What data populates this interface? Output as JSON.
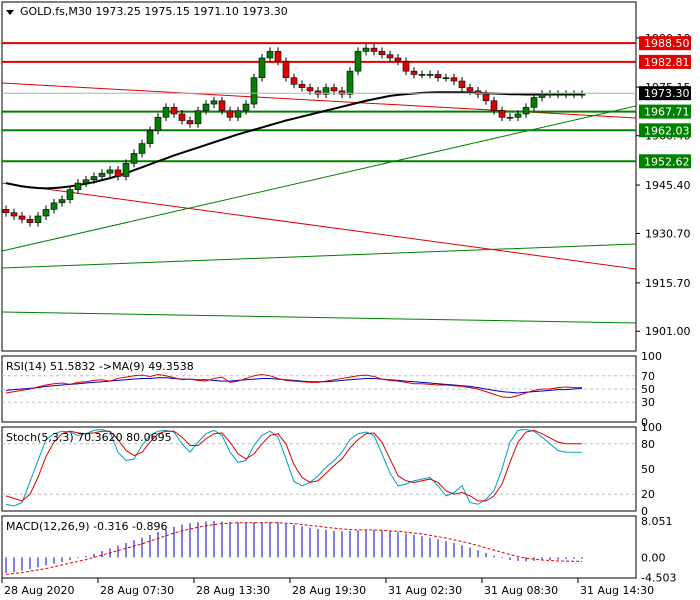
{
  "chart_data": [
    {
      "type": "candlestick",
      "panel": "price",
      "title": "GOLD.fs,M30  1973.25 1975.15 1971.10 1973.30",
      "y_range": [
        1895,
        2001
      ],
      "price_axis_labels": [
        "1990.10",
        "1975.15",
        "1960.40",
        "1945.40",
        "1930.70",
        "1915.70",
        "1901.00"
      ],
      "price_axis_values": [
        1990.1,
        1975.15,
        1960.4,
        1945.4,
        1930.7,
        1915.7,
        1901.0
      ],
      "current_price": {
        "label": "1973.30",
        "value": 1973.3
      },
      "horizontal_levels": [
        {
          "label": "1988.50",
          "value": 1988.5,
          "color": "#e00000"
        },
        {
          "label": "1982.81",
          "value": 1982.81,
          "color": "#e00000"
        },
        {
          "label": "1967.71",
          "value": 1967.71,
          "color": "#008000"
        },
        {
          "label": "1962.03",
          "value": 1962.03,
          "color": "#008000"
        },
        {
          "label": "1952.62",
          "value": 1952.62,
          "color": "#008000"
        }
      ],
      "time_labels": [
        "28 Aug 2020",
        "28 Aug 07:30",
        "28 Aug 13:30",
        "28 Aug 19:30",
        "31 Aug 02:30",
        "31 Aug 08:30",
        "31 Aug 14:30"
      ],
      "close": [
        1937,
        1936,
        1935,
        1934,
        1936,
        1938,
        1940,
        1941,
        1944,
        1946,
        1947,
        1948,
        1949,
        1950,
        1948,
        1952,
        1955,
        1958,
        1962,
        1966,
        1969,
        1967,
        1965,
        1964,
        1968,
        1970,
        1971,
        1968,
        1966,
        1968,
        1970,
        1978,
        1984,
        1986,
        1983,
        1978,
        1976,
        1975,
        1974,
        1973,
        1975,
        1974,
        1973,
        1980,
        1986,
        1987,
        1986,
        1985,
        1984,
        1983,
        1980,
        1979,
        1979,
        1979,
        1978,
        1978,
        1977,
        1975,
        1974,
        1973,
        1971,
        1968,
        1966,
        1966,
        1967,
        1969,
        1972,
        1973,
        1973,
        1973,
        1973,
        1973,
        1973
      ],
      "ma_slow": [
        1946,
        1945.5,
        1945,
        1944.7,
        1944.5,
        1944.4,
        1944.5,
        1944.7,
        1945,
        1945.4,
        1945.8,
        1946.3,
        1946.9,
        1947.5,
        1948.2,
        1949,
        1949.9,
        1950.8,
        1951.7,
        1952.6,
        1953.5,
        1954.4,
        1955.2,
        1956,
        1956.8,
        1957.6,
        1958.4,
        1959.2,
        1960,
        1960.8,
        1961.5,
        1962.2,
        1962.9,
        1963.6,
        1964.3,
        1965,
        1965.6,
        1966.2,
        1966.8,
        1967.4,
        1968,
        1968.6,
        1969.2,
        1969.8,
        1970.4,
        1971,
        1971.5,
        1972,
        1972.5,
        1972.8,
        1973,
        1973.2,
        1973.4,
        1973.5,
        1973.6,
        1973.6,
        1973.6,
        1973.6,
        1973.5,
        1973.4,
        1973.3,
        1973.2,
        1973.1,
        1973,
        1973,
        1972.9,
        1972.9,
        1972.9,
        1972.9,
        1972.9,
        1972.9,
        1972.9,
        1972.9
      ]
    },
    {
      "type": "line",
      "panel": "rsi",
      "title": "RSI(14) 51.5832  ->MA(9) 49.3538",
      "y_range": [
        0,
        100
      ],
      "axis_labels": [
        "100",
        "70",
        "50",
        "30",
        "0"
      ],
      "axis_values": [
        100,
        70,
        50,
        30,
        0
      ],
      "series": [
        {
          "color": "#0000c0",
          "values": [
            48,
            49,
            50,
            51,
            52,
            54,
            55,
            56,
            57,
            58,
            59,
            60,
            61,
            62,
            63,
            64,
            65,
            66,
            66,
            67,
            67,
            66,
            65,
            65,
            64,
            64,
            63,
            62,
            62,
            63,
            64,
            65,
            66,
            66,
            65,
            64,
            63,
            62,
            61,
            61,
            61,
            62,
            63,
            64,
            65,
            66,
            66,
            65,
            64,
            63,
            62,
            61,
            60,
            59,
            58,
            57,
            56,
            55,
            54,
            52,
            50,
            48,
            46,
            45,
            44,
            45,
            46,
            47,
            48,
            49,
            49,
            50,
            51
          ]
        },
        {
          "color": "#e00000",
          "values": [
            44,
            46,
            48,
            50,
            53,
            56,
            58,
            59,
            57,
            60,
            61,
            63,
            64,
            62,
            66,
            68,
            70,
            71,
            69,
            72,
            70,
            67,
            64,
            65,
            63,
            62,
            66,
            68,
            60,
            62,
            66,
            70,
            72,
            70,
            66,
            63,
            62,
            61,
            60,
            60,
            62,
            64,
            66,
            68,
            70,
            71,
            69,
            65,
            63,
            62,
            60,
            58,
            58,
            57,
            56,
            56,
            55,
            54,
            52,
            50,
            46,
            42,
            38,
            37,
            40,
            44,
            48,
            50,
            50,
            52,
            53,
            52,
            52
          ]
        }
      ]
    },
    {
      "type": "line",
      "panel": "stochastic",
      "title": "Stoch(5,3,3) 70.3620 80.0695",
      "y_range": [
        0,
        100
      ],
      "axis_labels": [
        "100",
        "80",
        "50",
        "20",
        "0"
      ],
      "axis_values": [
        100,
        80,
        50,
        20,
        0
      ],
      "series": [
        {
          "color": "#00a0c0",
          "values": [
            8,
            6,
            10,
            35,
            60,
            85,
            92,
            95,
            94,
            90,
            92,
            96,
            97,
            94,
            70,
            60,
            62,
            78,
            90,
            95,
            96,
            94,
            80,
            70,
            82,
            92,
            96,
            90,
            70,
            58,
            60,
            78,
            90,
            95,
            88,
            62,
            35,
            30,
            34,
            42,
            52,
            60,
            70,
            85,
            92,
            94,
            90,
            68,
            45,
            30,
            32,
            36,
            38,
            40,
            30,
            18,
            22,
            30,
            10,
            8,
            14,
            24,
            50,
            82,
            96,
            97,
            95,
            88,
            80,
            72,
            70,
            70,
            70
          ]
        },
        {
          "color": "#e00000",
          "values": [
            18,
            15,
            12,
            20,
            40,
            65,
            82,
            92,
            95,
            93,
            92,
            93,
            95,
            95,
            85,
            72,
            66,
            70,
            82,
            92,
            95,
            95,
            88,
            78,
            78,
            86,
            92,
            93,
            82,
            68,
            62,
            68,
            80,
            90,
            92,
            80,
            55,
            40,
            34,
            36,
            45,
            54,
            62,
            75,
            85,
            92,
            93,
            82,
            62,
            42,
            36,
            34,
            36,
            38,
            34,
            24,
            20,
            22,
            18,
            12,
            12,
            18,
            32,
            58,
            82,
            94,
            96,
            92,
            87,
            82,
            80,
            80,
            80
          ]
        }
      ]
    },
    {
      "type": "bar",
      "panel": "macd",
      "title": "MACD(12,26,9) -0.316 -0.896",
      "y_range": [
        -4.6,
        9.2
      ],
      "axis_labels": [
        "8.051",
        "0.00",
        "-4.503"
      ],
      "axis_values": [
        8.051,
        0.0,
        -4.503
      ],
      "histogram": [
        -3.5,
        -3.3,
        -3.0,
        -2.6,
        -2.2,
        -1.8,
        -1.4,
        -1.0,
        -0.6,
        -0.2,
        0.3,
        0.8,
        1.4,
        2.0,
        2.6,
        3.2,
        3.8,
        4.4,
        5.0,
        5.6,
        6.2,
        6.8,
        7.3,
        7.6,
        7.8,
        8.0,
        8.05,
        8.0,
        7.9,
        7.8,
        7.7,
        7.8,
        7.9,
        7.9,
        7.8,
        7.5,
        7.2,
        6.9,
        6.6,
        6.3,
        6.1,
        5.9,
        5.8,
        5.9,
        6.0,
        6.1,
        6.1,
        6.0,
        5.8,
        5.6,
        5.3,
        5.0,
        4.7,
        4.4,
        4.0,
        3.6,
        3.2,
        2.7,
        2.2,
        1.6,
        1.0,
        0.4,
        -0.2,
        -0.6,
        -0.8,
        -0.9,
        -0.8,
        -0.7,
        -0.6,
        -0.5,
        -0.4,
        -0.35,
        -0.32
      ],
      "signal_color": "#e00000",
      "signal": [
        -3.8,
        -3.6,
        -3.4,
        -3.1,
        -2.8,
        -2.5,
        -2.1,
        -1.7,
        -1.3,
        -0.9,
        -0.5,
        0.0,
        0.5,
        1.0,
        1.5,
        2.0,
        2.5,
        3.0,
        3.6,
        4.2,
        4.8,
        5.4,
        5.9,
        6.3,
        6.7,
        7.0,
        7.3,
        7.5,
        7.6,
        7.7,
        7.7,
        7.7,
        7.7,
        7.7,
        7.7,
        7.6,
        7.5,
        7.3,
        7.1,
        6.9,
        6.7,
        6.5,
        6.3,
        6.2,
        6.1,
        6.1,
        6.1,
        6.0,
        5.9,
        5.8,
        5.6,
        5.4,
        5.2,
        4.9,
        4.6,
        4.3,
        3.9,
        3.5,
        3.1,
        2.6,
        2.1,
        1.6,
        1.1,
        0.6,
        0.2,
        -0.2,
        -0.4,
        -0.6,
        -0.7,
        -0.8,
        -0.85,
        -0.88,
        -0.9
      ]
    }
  ]
}
